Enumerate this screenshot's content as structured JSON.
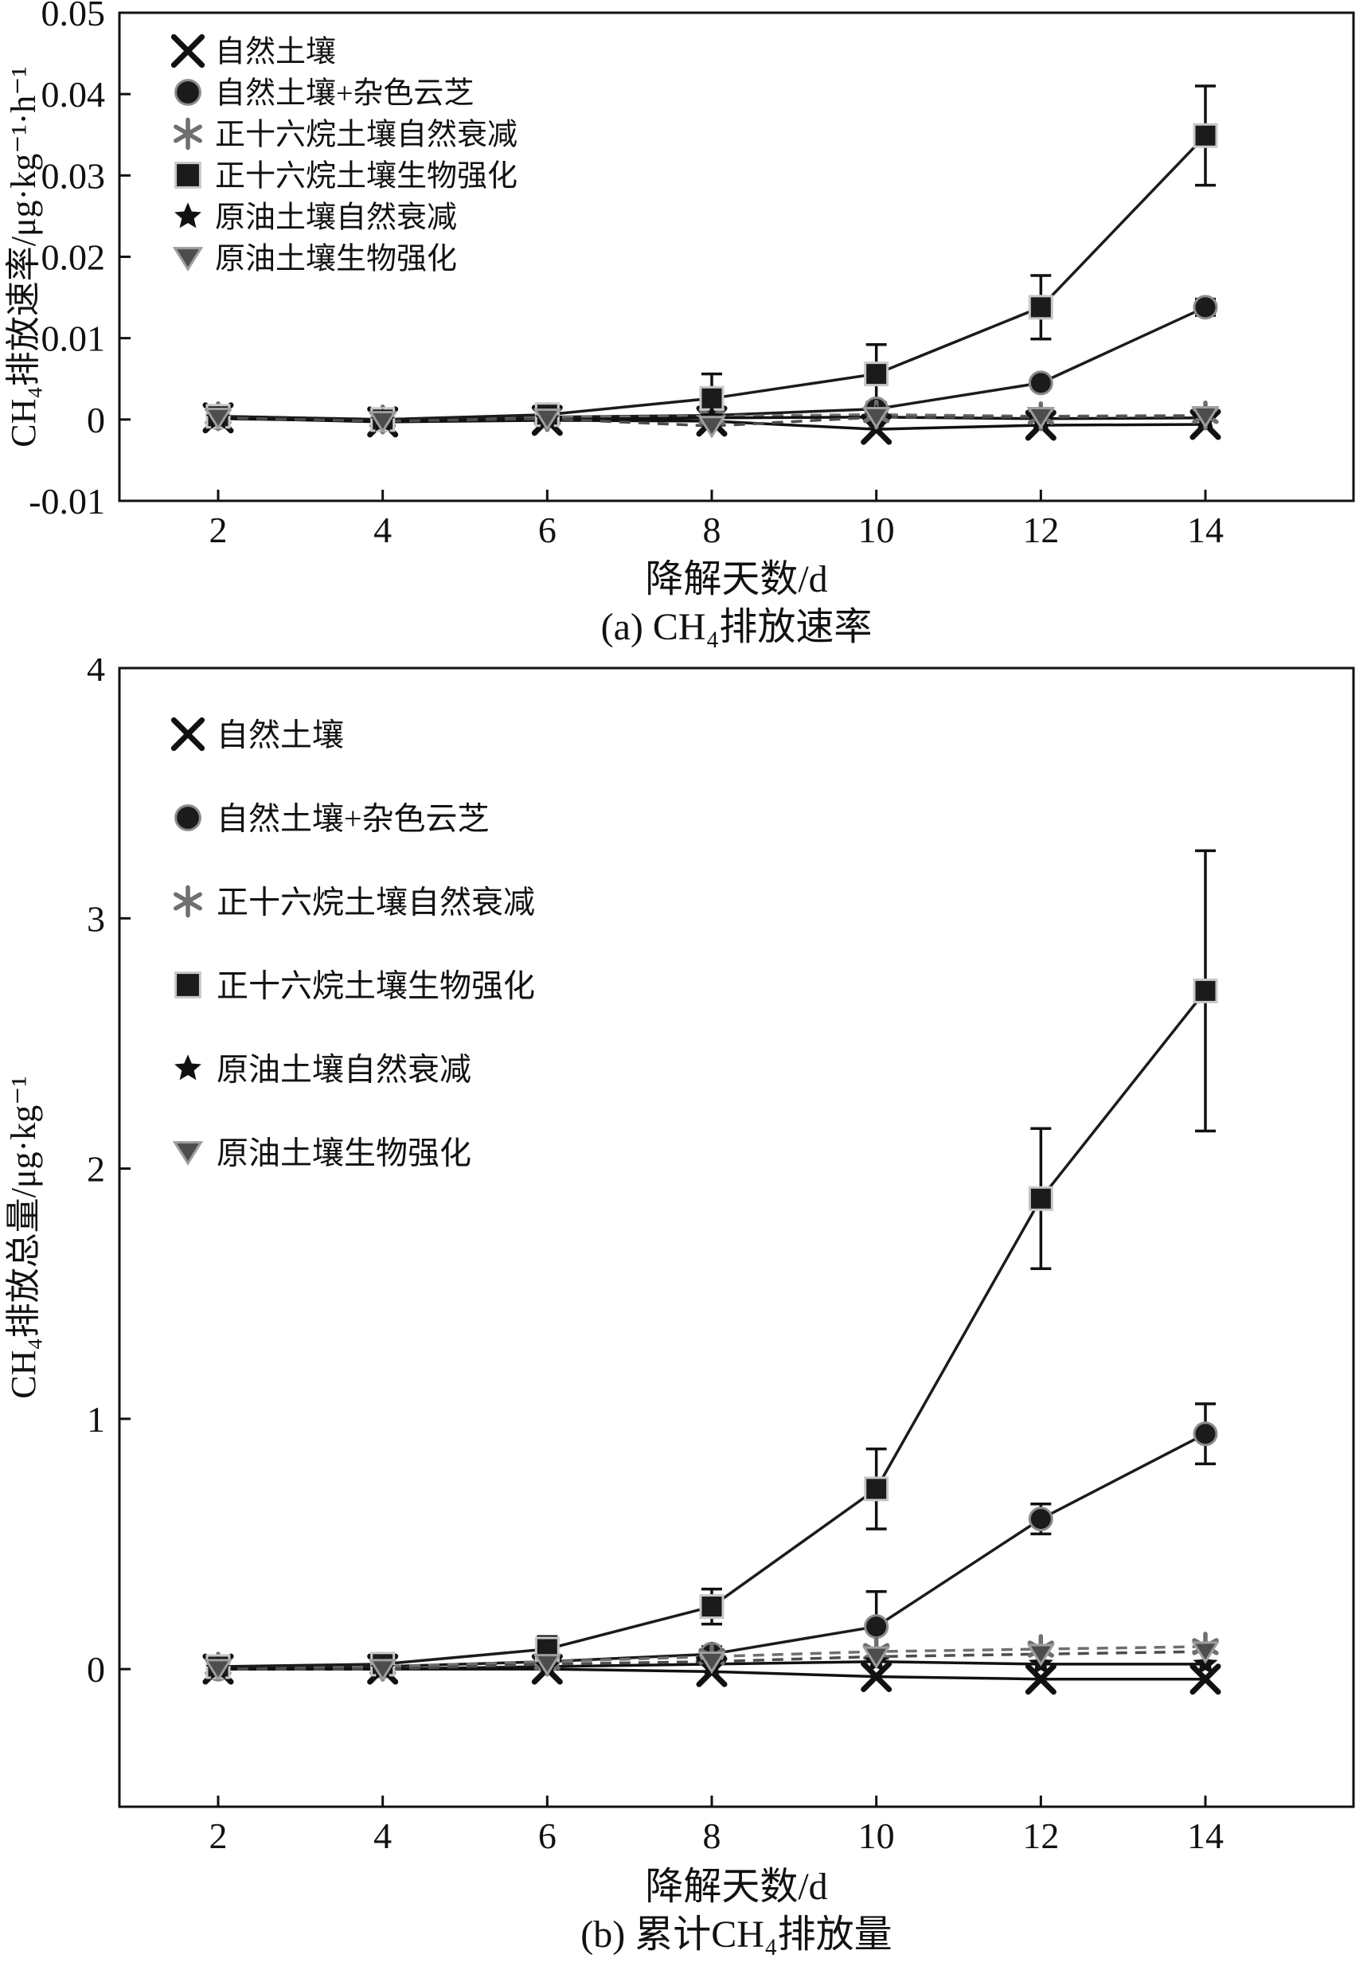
{
  "page": {
    "background": "#ffffff",
    "ink": "#111111"
  },
  "chart_data": [
    {
      "type": "line",
      "caption": "(a) CH₄排放速率",
      "xlabel": "降解天数/d",
      "ylabel": "CH₄排放速率/μg·kg⁻¹·h⁻¹",
      "legend_position": "upper-left",
      "grid": false,
      "x": [
        2,
        4,
        6,
        8,
        10,
        12,
        14
      ],
      "xlim": [
        0.8,
        15.8
      ],
      "ylim": [
        -0.01,
        0.05
      ],
      "xticks": [
        2,
        4,
        6,
        8,
        10,
        12,
        14
      ],
      "xtick_labels": [
        "2",
        "4",
        "6",
        "8",
        "10",
        "12",
        "14"
      ],
      "yticks": [
        -0.01,
        0,
        0.01,
        0.02,
        0.03,
        0.04,
        0.05
      ],
      "ytick_labels": [
        "-0.01",
        "0",
        "0.01",
        "0.02",
        "0.03",
        "0.04",
        "0.05"
      ],
      "series": [
        {
          "id": "natural-soil",
          "name": "自然土壤",
          "marker": "x",
          "line": "solid",
          "color": "#111111",
          "size": 16,
          "values": [
            0.0002,
            -0.0003,
            -0.0001,
            -0.0002,
            -0.0012,
            -0.0007,
            -0.0006
          ],
          "errors": [
            0,
            0,
            0,
            0,
            0,
            0,
            0
          ]
        },
        {
          "id": "natural-soil-trametes",
          "name": "自然土壤+杂色云芝",
          "marker": "circle",
          "line": "solid",
          "color": "#1b1b1b",
          "edge": "#8c8c8c",
          "size": 14,
          "values": [
            0.0002,
            -0.0001,
            0.0003,
            0.0005,
            0.0013,
            0.0045,
            0.0138
          ],
          "errors": [
            0.0004,
            0.0002,
            0.0002,
            0.0003,
            0.0008,
            0.0007,
            0.001
          ]
        },
        {
          "id": "hexadecane-natural-attenuation",
          "name": "正十六烷土壤自然衰减",
          "marker": "asterisk",
          "line": "dashed",
          "color": "#6f6f6f",
          "size": 16,
          "values": [
            0.0004,
            0.0,
            0.0003,
            0.0004,
            0.0006,
            0.0004,
            0.0005
          ],
          "errors": [
            0,
            0,
            0,
            0,
            0,
            0,
            0
          ]
        },
        {
          "id": "hexadecane-bioaugmentation",
          "name": "正十六烷土壤生物强化",
          "marker": "square",
          "line": "solid",
          "color": "#1b1b1b",
          "edge": "#c8c8c8",
          "size": 14,
          "values": [
            0.0004,
            0.0,
            0.0006,
            0.0026,
            0.0056,
            0.0138,
            0.0349
          ],
          "errors": [
            0.0009,
            0.0004,
            0.0007,
            0.003,
            0.0036,
            0.0039,
            0.0061
          ]
        },
        {
          "id": "crude-oil-natural-attenuation",
          "name": "原油土壤自然衰减",
          "marker": "star",
          "line": "solid",
          "color": "#111111",
          "size": 15,
          "values": [
            0.0001,
            -0.0002,
            0.0,
            0.0002,
            0.0003,
            0.0001,
            0.0002
          ],
          "errors": [
            0,
            0,
            0,
            0,
            0,
            0,
            0
          ]
        },
        {
          "id": "crude-oil-bioaugmentation",
          "name": "原油土壤生物强化",
          "marker": "triangle-down",
          "line": "dashed",
          "color": "#4d4d4d",
          "edge": "#9e9e9e",
          "size": 15,
          "values": [
            0.0002,
            -0.0002,
            0.0001,
            -0.0008,
            0.0003,
            0.0003,
            0.0004
          ],
          "errors": [
            0,
            0,
            0,
            0,
            0,
            0,
            0
          ]
        }
      ]
    },
    {
      "type": "line",
      "caption": "(b) 累计CH₄排放量",
      "xlabel": "降解天数/d",
      "ylabel": "CH₄排放总量/μg·kg⁻¹",
      "legend_position": "upper-left",
      "grid": false,
      "x": [
        2,
        4,
        6,
        8,
        10,
        12,
        14
      ],
      "xlim": [
        0.8,
        15.8
      ],
      "ylim": [
        -0.55,
        4
      ],
      "xticks": [
        2,
        4,
        6,
        8,
        10,
        12,
        14
      ],
      "xtick_labels": [
        "2",
        "4",
        "6",
        "8",
        "10",
        "12",
        "14"
      ],
      "yticks": [
        0,
        1,
        2,
        3,
        4
      ],
      "ytick_labels": [
        "0",
        "1",
        "2",
        "3",
        "4"
      ],
      "series": [
        {
          "id": "natural-soil",
          "name": "自然土壤",
          "marker": "x",
          "line": "solid",
          "color": "#111111",
          "size": 16,
          "values": [
            0.0,
            0.0,
            0.0,
            -0.01,
            -0.03,
            -0.04,
            -0.04
          ],
          "errors": [
            0,
            0,
            0,
            0,
            0,
            0,
            0
          ]
        },
        {
          "id": "natural-soil-trametes",
          "name": "自然土壤+杂色云芝",
          "marker": "circle",
          "line": "solid",
          "color": "#1b1b1b",
          "edge": "#8c8c8c",
          "size": 14,
          "values": [
            0.0,
            0.01,
            0.03,
            0.06,
            0.17,
            0.6,
            0.94
          ],
          "errors": [
            0,
            0,
            0.02,
            0.03,
            0.14,
            0.06,
            0.12
          ]
        },
        {
          "id": "hexadecane-natural-attenuation",
          "name": "正十六烷土壤自然衰减",
          "marker": "asterisk",
          "line": "dashed",
          "color": "#6f6f6f",
          "size": 16,
          "values": [
            0.01,
            0.01,
            0.03,
            0.05,
            0.07,
            0.08,
            0.09
          ],
          "errors": [
            0,
            0,
            0,
            0,
            0,
            0,
            0
          ]
        },
        {
          "id": "hexadecane-bioaugmentation",
          "name": "正十六烷土壤生物强化",
          "marker": "square",
          "line": "solid",
          "color": "#1b1b1b",
          "edge": "#c8c8c8",
          "size": 14,
          "values": [
            0.01,
            0.02,
            0.08,
            0.25,
            0.72,
            1.88,
            2.71
          ],
          "errors": [
            0.02,
            0.02,
            0.05,
            0.07,
            0.16,
            0.28,
            0.56
          ]
        },
        {
          "id": "crude-oil-natural-attenuation",
          "name": "原油土壤自然衰减",
          "marker": "star",
          "line": "solid",
          "color": "#111111",
          "size": 15,
          "values": [
            0.0,
            0.0,
            0.01,
            0.02,
            0.03,
            0.02,
            0.02
          ],
          "errors": [
            0,
            0,
            0,
            0,
            0,
            0,
            0
          ]
        },
        {
          "id": "crude-oil-bioaugmentation",
          "name": "原油土壤生物强化",
          "marker": "triangle-down",
          "line": "dashed",
          "color": "#4d4d4d",
          "edge": "#9e9e9e",
          "size": 15,
          "values": [
            0.0,
            0.0,
            0.02,
            0.03,
            0.05,
            0.06,
            0.07
          ],
          "errors": [
            0,
            0,
            0,
            0,
            0,
            0,
            0
          ]
        }
      ]
    }
  ]
}
